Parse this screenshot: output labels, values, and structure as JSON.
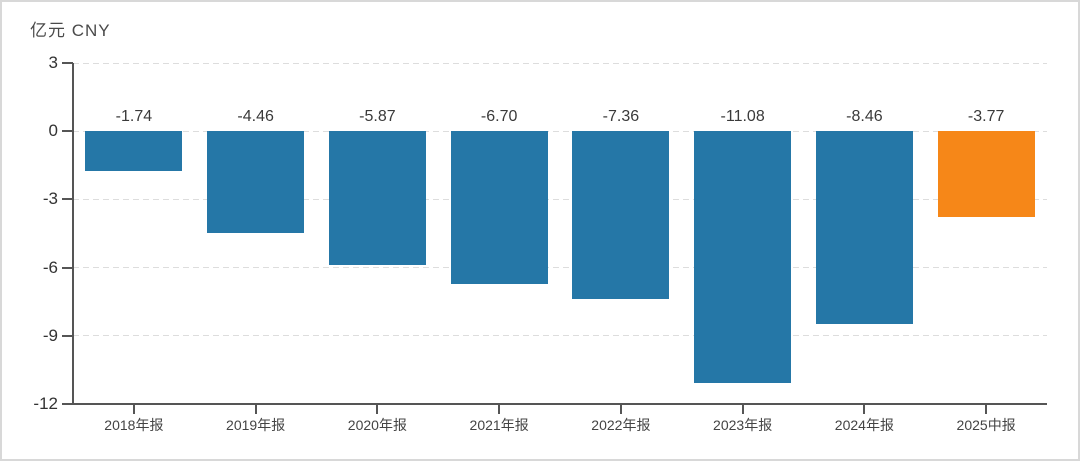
{
  "chart_data": {
    "type": "bar",
    "title": "亿元 CNY",
    "categories": [
      "2018年报",
      "2019年报",
      "2020年报",
      "2021年报",
      "2022年报",
      "2023年报",
      "2024年报",
      "2025中报"
    ],
    "values": [
      -1.74,
      -4.46,
      -5.87,
      -6.7,
      -7.36,
      -11.08,
      -8.46,
      -3.77
    ],
    "value_labels": [
      "-1.74",
      "-4.46",
      "-5.87",
      "-6.70",
      "-7.36",
      "-11.08",
      "-8.46",
      "-3.77"
    ],
    "y_ticks": [
      3,
      0,
      -3,
      -6,
      -9,
      -12
    ],
    "y_gridlines": [
      3,
      0,
      -3,
      -6,
      -9
    ],
    "ylim": [
      -12,
      3
    ],
    "xlabel": "",
    "ylabel": "亿元 CNY",
    "grid": "horizontal-dashed",
    "legend_position": "none",
    "colors": {
      "bar_default": "#2577A7",
      "bar_highlight": "#F68718",
      "highlight_index": 7,
      "grid_color": "#dddddd",
      "axis_color": "#555555",
      "label_color": "#3a3a3a",
      "frame_border": "#d8d8d8",
      "background": "#ffffff"
    }
  }
}
